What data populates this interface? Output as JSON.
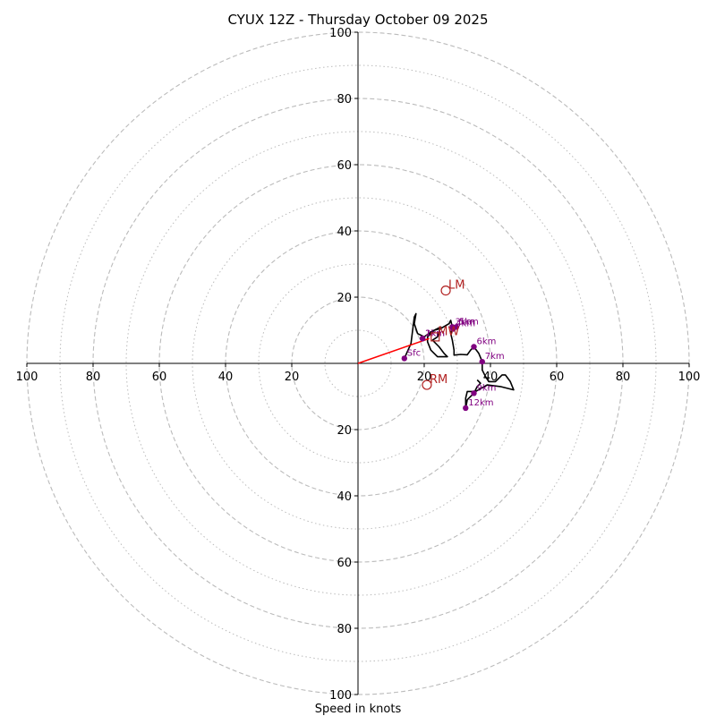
{
  "chart_data": {
    "type": "hodograph",
    "title": "CYUX 12Z - Thursday October 09 2025",
    "xlabel": "Speed in knots",
    "range": 100,
    "rings": {
      "major": [
        20,
        40,
        60,
        80,
        100
      ],
      "minor": [
        10,
        30,
        50,
        70,
        90
      ]
    },
    "ticks": {
      "x_left": [
        "100",
        "80",
        "60",
        "40",
        "20"
      ],
      "x_right": [
        "20",
        "40",
        "60",
        "80",
        "100"
      ],
      "y_up": [
        "20",
        "40",
        "60",
        "80",
        "100"
      ],
      "y_down": [
        "20",
        "40",
        "60",
        "80",
        "100"
      ]
    },
    "hodograph_trace": [
      [
        14,
        1.5
      ],
      [
        16,
        6
      ],
      [
        17,
        14
      ],
      [
        17.5,
        15
      ],
      [
        17,
        12
      ],
      [
        18,
        9
      ],
      [
        20,
        8
      ],
      [
        22,
        9.5
      ],
      [
        25,
        11
      ],
      [
        24,
        8
      ],
      [
        22.5,
        7
      ],
      [
        24.5,
        5
      ],
      [
        26,
        3
      ],
      [
        27,
        2
      ],
      [
        24,
        2
      ],
      [
        22,
        4
      ],
      [
        21,
        6.5
      ],
      [
        21,
        8
      ],
      [
        23,
        10
      ],
      [
        25,
        10.5
      ],
      [
        27.5,
        12
      ],
      [
        28,
        13
      ],
      [
        28.5,
        11
      ],
      [
        28,
        9
      ],
      [
        28.5,
        7
      ],
      [
        29,
        4
      ],
      [
        29,
        2.5
      ],
      [
        31,
        2.7
      ],
      [
        33,
        2.6
      ],
      [
        34,
        4
      ],
      [
        35,
        5
      ],
      [
        36.5,
        3
      ],
      [
        37.5,
        0.5
      ],
      [
        37.5,
        -2
      ],
      [
        38.5,
        -4
      ],
      [
        39.5,
        -5.5
      ],
      [
        41.5,
        -5.5
      ],
      [
        43.5,
        -3.5
      ],
      [
        44.5,
        -3.5
      ],
      [
        46,
        -5.5
      ],
      [
        47,
        -8
      ],
      [
        43,
        -7
      ],
      [
        39,
        -6.5
      ],
      [
        35.5,
        -8.5
      ],
      [
        33,
        -8.5
      ],
      [
        32.5,
        -10.5
      ],
      [
        32.5,
        -13.5
      ],
      [
        33,
        -11
      ],
      [
        35,
        -9
      ],
      [
        36,
        -7
      ],
      [
        37,
        -6
      ],
      [
        36,
        -5
      ]
    ],
    "height_points": [
      {
        "label": "Sfc",
        "u": 14,
        "v": 1.5
      },
      {
        "label": "1km",
        "u": 19.5,
        "v": 7.5
      },
      {
        "label": "2km",
        "u": 19.5,
        "v": 7.5
      },
      {
        "label": "3km",
        "u": 28.5,
        "v": 11
      },
      {
        "label": "4km",
        "u": 28.7,
        "v": 10.4
      },
      {
        "label": "5km",
        "u": 29.7,
        "v": 11
      },
      {
        "label": "6km",
        "u": 35,
        "v": 5
      },
      {
        "label": "7km",
        "u": 37.5,
        "v": 0.5
      },
      {
        "label": "9km",
        "u": 35,
        "v": -9
      },
      {
        "label": "12km",
        "u": 32.5,
        "v": -13.5
      }
    ],
    "storm_motion": [
      {
        "label": "LM",
        "u": 26.5,
        "v": 22,
        "marker": "circle"
      },
      {
        "label": "MW",
        "u": 23.3,
        "v": 8,
        "marker": "square"
      },
      {
        "label": "RM",
        "u": 20.8,
        "v": -6.5,
        "marker": "circle"
      }
    ],
    "bunkers_vector": {
      "from": [
        0,
        0
      ],
      "to": [
        21.5,
        7.5
      ]
    },
    "colors": {
      "trace": "#000000",
      "points": "#800080",
      "storm": "#b22222",
      "vector": "#ff0000",
      "rings": "#bbbbbb"
    }
  }
}
